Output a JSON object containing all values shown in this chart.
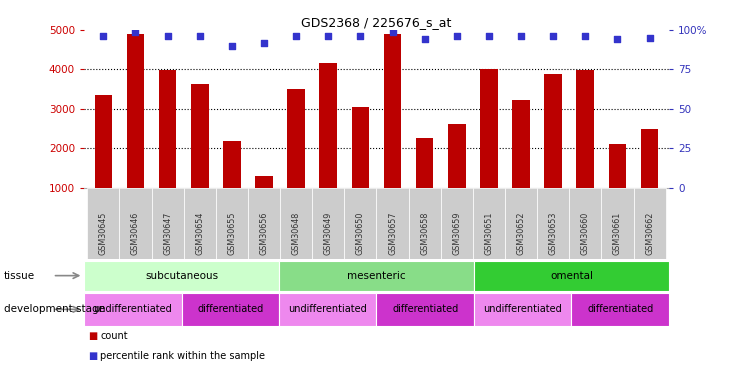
{
  "title": "GDS2368 / 225676_s_at",
  "samples": [
    "GSM30645",
    "GSM30646",
    "GSM30647",
    "GSM30654",
    "GSM30655",
    "GSM30656",
    "GSM30648",
    "GSM30649",
    "GSM30650",
    "GSM30657",
    "GSM30658",
    "GSM30659",
    "GSM30651",
    "GSM30652",
    "GSM30653",
    "GSM30660",
    "GSM30661",
    "GSM30662"
  ],
  "counts": [
    3340,
    4900,
    3990,
    3620,
    2180,
    1280,
    3510,
    4170,
    3050,
    4910,
    2250,
    2620,
    4010,
    3220,
    3880,
    3980,
    2100,
    2490
  ],
  "percentile_pct": [
    96,
    99,
    96,
    96,
    90,
    92,
    96,
    96,
    96,
    99,
    94,
    96,
    96,
    96,
    96,
    96,
    94,
    95
  ],
  "ylim_left": [
    1000,
    5000
  ],
  "ylim_right": [
    0,
    100
  ],
  "bar_color": "#bb0000",
  "dot_color": "#3333cc",
  "tissue_groups": [
    {
      "label": "subcutaneous",
      "start": 0,
      "end": 6,
      "color": "#ccffcc"
    },
    {
      "label": "mesenteric",
      "start": 6,
      "end": 12,
      "color": "#88dd88"
    },
    {
      "label": "omental",
      "start": 12,
      "end": 18,
      "color": "#33cc33"
    }
  ],
  "dev_stage_groups": [
    {
      "label": "undifferentiated",
      "start": 0,
      "end": 3,
      "color": "#ee88ee"
    },
    {
      "label": "differentiated",
      "start": 3,
      "end": 6,
      "color": "#cc33cc"
    },
    {
      "label": "undifferentiated",
      "start": 6,
      "end": 9,
      "color": "#ee88ee"
    },
    {
      "label": "differentiated",
      "start": 9,
      "end": 12,
      "color": "#cc33cc"
    },
    {
      "label": "undifferentiated",
      "start": 12,
      "end": 15,
      "color": "#ee88ee"
    },
    {
      "label": "differentiated",
      "start": 15,
      "end": 18,
      "color": "#cc33cc"
    }
  ],
  "tick_bg_color": "#cccccc",
  "tissue_label": "tissue",
  "dev_label": "development stage",
  "legend_count": "count",
  "legend_percentile": "percentile rank within the sample",
  "left_axis_color": "#cc0000",
  "right_axis_color": "#3333bb",
  "left_yticks": [
    1000,
    2000,
    3000,
    4000,
    5000
  ],
  "right_yticks": [
    0,
    25,
    50,
    75,
    100
  ],
  "right_yticklabels": [
    "0",
    "25",
    "50",
    "75",
    "100%"
  ]
}
